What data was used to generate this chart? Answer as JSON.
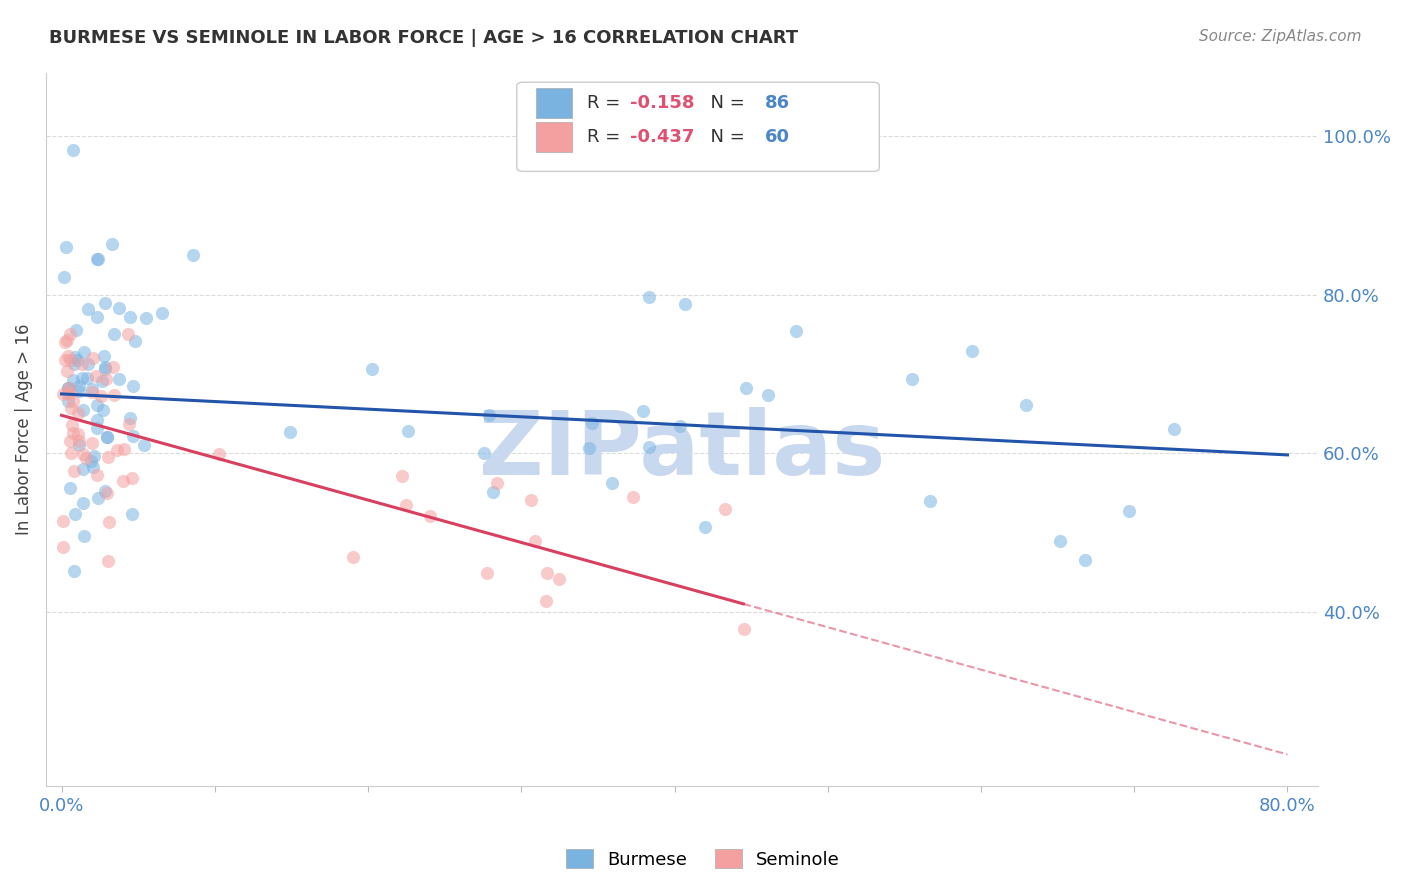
{
  "title": "BURMESE VS SEMINOLE IN LABOR FORCE | AGE > 16 CORRELATION CHART",
  "source": "Source: ZipAtlas.com",
  "ylabel": "In Labor Force | Age > 16",
  "ytick_labels": [
    "100.0%",
    "80.0%",
    "60.0%",
    "40.0%"
  ],
  "ytick_values": [
    1.0,
    0.8,
    0.6,
    0.4
  ],
  "xtick_show": [
    "0.0%",
    "80.0%"
  ],
  "xlim": [
    -0.01,
    0.82
  ],
  "ylim": [
    0.18,
    1.08
  ],
  "burmese_color": "#7ab3e0",
  "seminole_color": "#f4a0a0",
  "burmese_line_color": "#2255aa",
  "seminole_line_color": "#d94060",
  "burmese_line": {
    "x0": 0.0,
    "y0": 0.675,
    "x1": 0.8,
    "y1": 0.598
  },
  "seminole_line_solid": {
    "x0": 0.0,
    "y0": 0.648,
    "x1": 0.445,
    "y1": 0.41
  },
  "seminole_line_dash": {
    "x0": 0.445,
    "y0": 0.41,
    "x1": 0.8,
    "y1": 0.22
  },
  "background_color": "#ffffff",
  "grid_color": "#cccccc",
  "watermark": "ZIPatlas",
  "watermark_color": "#c8d8ee",
  "title_color": "#333333",
  "source_color": "#888888",
  "axis_color": "#4a86c8",
  "legend_R_color": "#e05070",
  "legend_N_color": "#4a86c8",
  "legend_entries": [
    {
      "color": "#7ab3e0",
      "R": "-0.158",
      "N": "86"
    },
    {
      "color": "#f4a0a0",
      "R": "-0.437",
      "N": "60"
    }
  ]
}
